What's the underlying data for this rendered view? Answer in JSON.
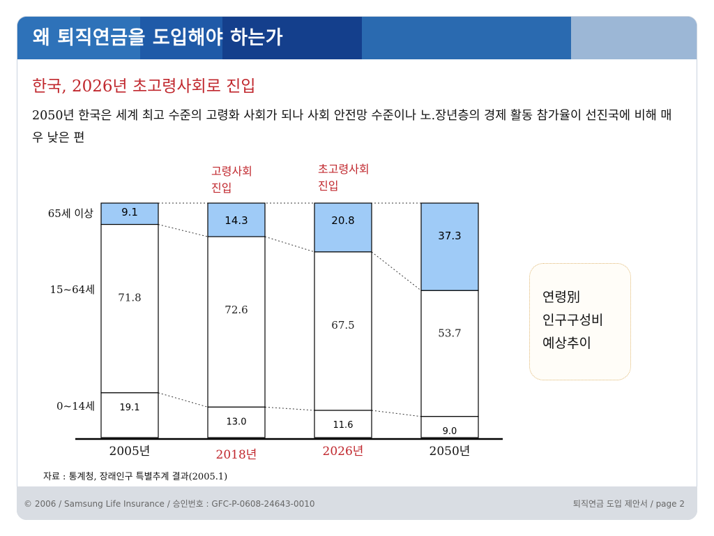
{
  "slide": {
    "title": "왜 퇴직연금을 도입해야 하는가",
    "subtitle": "한국,  2026년 초고령사회로 진입",
    "description": "2050년 한국은 세계 최고 수준의 고령화 사회가 되나 사회 안전망 수준이나 노.장년층의 경제 활동 참가율이 선진국에 비해 매우 낮은 편",
    "source": "자료 : 통계청, 장래인구 특별추계 결과(2005.1)",
    "side_note": "연령別\n인구구성비\n예상추이",
    "footer_left": "© 2006 / Samsung Life Insurance / 승인번호 : GFC-P-0608-24643-0010",
    "footer_right": "퇴직연금 도입 제안서  /  page 2"
  },
  "colors": {
    "title_bar": "#2f6db3",
    "accent_red": "#c0272d",
    "elderly_fill": "#9fcbf7",
    "bar_fill": "#ffffff"
  },
  "chart_data": {
    "type": "bar",
    "stacked": true,
    "normalized_percent": true,
    "categories": [
      "2005년",
      "2018년",
      "2026년",
      "2050년"
    ],
    "highlighted_categories": [
      "2018년",
      "2026년"
    ],
    "row_labels": [
      "65세 이상",
      "15~64세",
      "0~14세"
    ],
    "series": [
      {
        "name": "0~14세",
        "values": [
          19.1,
          13.0,
          11.6,
          9.0
        ]
      },
      {
        "name": "15~64세",
        "values": [
          71.8,
          72.6,
          67.5,
          53.7
        ]
      },
      {
        "name": "65세 이상",
        "values": [
          9.1,
          14.3,
          20.8,
          37.3
        ],
        "color": "#9fcbf7"
      }
    ],
    "annotations": [
      {
        "category": "2018년",
        "text": [
          "고령사회",
          "진입"
        ]
      },
      {
        "category": "2026년",
        "text": [
          "초고령사회",
          "진입"
        ]
      }
    ],
    "ylim": [
      0,
      100
    ],
    "grid": false
  }
}
